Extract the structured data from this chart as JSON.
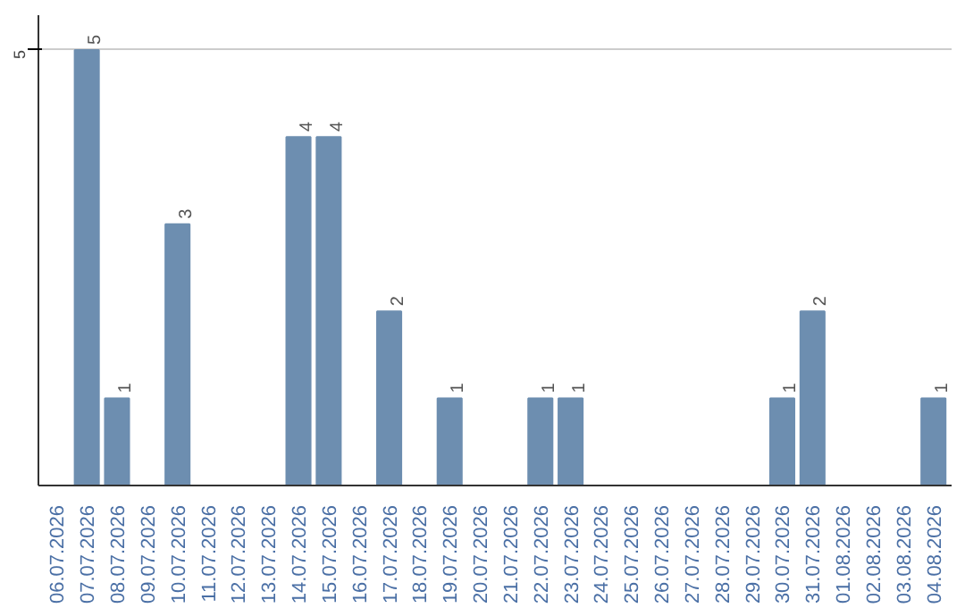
{
  "chart_data": {
    "type": "bar",
    "categories": [
      "06.07.2026",
      "07.07.2026",
      "08.07.2026",
      "09.07.2026",
      "10.07.2026",
      "11.07.2026",
      "12.07.2026",
      "13.07.2026",
      "14.07.2026",
      "15.07.2026",
      "16.07.2026",
      "17.07.2026",
      "18.07.2026",
      "19.07.2026",
      "20.07.2026",
      "21.07.2026",
      "22.07.2026",
      "23.07.2026",
      "24.07.2026",
      "25.07.2026",
      "26.07.2026",
      "27.07.2026",
      "28.07.2026",
      "29.07.2026",
      "30.07.2026",
      "31.07.2026",
      "01.08.2026",
      "02.08.2026",
      "03.08.2026",
      "04.08.2026"
    ],
    "values": [
      0,
      5,
      1,
      0,
      3,
      0,
      0,
      0,
      4,
      4,
      0,
      2,
      0,
      1,
      0,
      0,
      1,
      1,
      0,
      0,
      0,
      0,
      0,
      0,
      1,
      2,
      0,
      0,
      0,
      1
    ],
    "value_labels": [
      null,
      "5",
      "1",
      null,
      "3",
      null,
      null,
      null,
      "4",
      "4",
      null,
      "2",
      null,
      "1",
      null,
      null,
      "1",
      "1",
      null,
      null,
      null,
      null,
      null,
      null,
      "1",
      "2",
      null,
      null,
      null,
      "1"
    ],
    "color": "#6d8eb0",
    "ylim": [
      0,
      5.4
    ],
    "yticks": [
      5
    ],
    "grid": "y"
  }
}
